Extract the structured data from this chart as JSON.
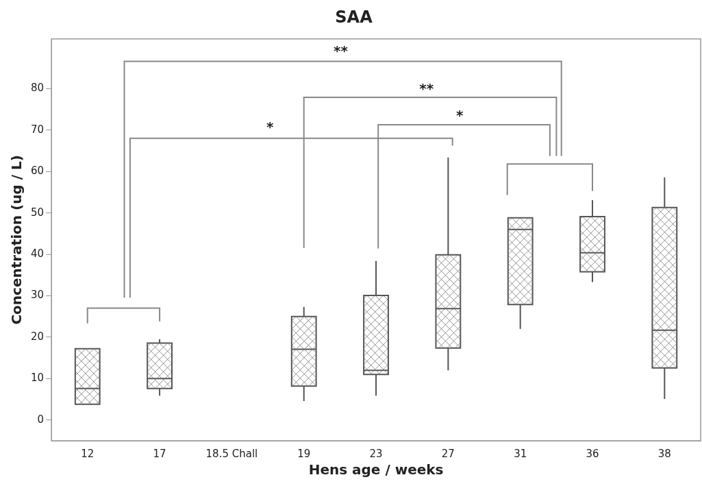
{
  "chart_data": {
    "type": "box",
    "title": "SAA",
    "xlabel": "Hens age / weeks",
    "ylabel": "Concentration (ug / L)",
    "categories": [
      "12",
      "17",
      "18.5 Chall",
      "19",
      "23",
      "27",
      "31",
      "36",
      "38"
    ],
    "series": [
      {
        "color": "#555555",
        "boxes": [
          {
            "low": 3.8,
            "q1": 3.8,
            "median": 7.6,
            "q3": 17.2,
            "high": 17.2
          },
          {
            "low": 5.9,
            "q1": 7.6,
            "median": 10.0,
            "q3": 18.6,
            "high": 19.5
          },
          null,
          {
            "low": 4.6,
            "q1": 8.2,
            "median": 17.1,
            "q3": 25.0,
            "high": 27.3
          },
          {
            "low": 5.9,
            "q1": 11.0,
            "median": 12.0,
            "q3": 30.1,
            "high": 38.4
          },
          {
            "low": 12.0,
            "q1": 17.4,
            "median": 26.9,
            "q3": 39.9,
            "high": 63.4
          },
          {
            "low": 22.0,
            "q1": 27.9,
            "median": 46.0,
            "q3": 48.8,
            "high": 48.8
          },
          {
            "low": 33.3,
            "q1": 35.8,
            "median": 40.4,
            "q3": 49.1,
            "high": 53.1
          },
          {
            "low": 5.1,
            "q1": 12.6,
            "median": 21.7,
            "q3": 51.3,
            "high": 58.6
          }
        ]
      }
    ],
    "ylim": [
      -5,
      92
    ],
    "yticks": [
      0,
      10,
      20,
      30,
      40,
      50,
      60,
      70,
      80
    ],
    "grid": false,
    "legend": false,
    "annotations": [
      "**",
      "**",
      "*",
      "*"
    ]
  }
}
